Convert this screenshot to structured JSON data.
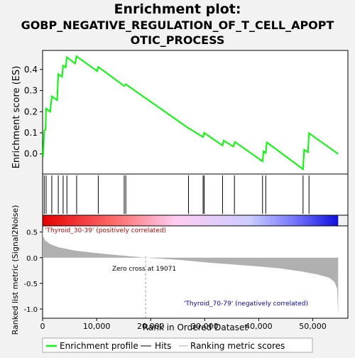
{
  "chart_data": {
    "type": "line",
    "title_lines": [
      "Enrichment plot:",
      "GOBP_NEGATIVE_REGULATION_OF_T_CELL_APOPT",
      "OTIC_PROCESS"
    ],
    "enrichment_panel": {
      "ylabel": "Enrichment score (ES)",
      "ylim": [
        -0.095,
        0.49
      ],
      "yticks": [
        0.0,
        0.1,
        0.2,
        0.3,
        0.4
      ],
      "ytick_labels": [
        "0.0",
        "0.1",
        "0.2",
        "0.3",
        "0.4"
      ],
      "line_color": "#00ff00",
      "profile": [
        [
          0,
          0.0
        ],
        [
          100,
          -0.005
        ],
        [
          300,
          0.11
        ],
        [
          550,
          0.115
        ],
        [
          650,
          0.215
        ],
        [
          1400,
          0.2
        ],
        [
          1700,
          0.272
        ],
        [
          2700,
          0.255
        ],
        [
          2900,
          0.378
        ],
        [
          3600,
          0.365
        ],
        [
          3800,
          0.418
        ],
        [
          4300,
          0.41
        ],
        [
          4500,
          0.458
        ],
        [
          6000,
          0.428
        ],
        [
          6300,
          0.462
        ],
        [
          10100,
          0.392
        ],
        [
          10300,
          0.412
        ],
        [
          15100,
          0.322
        ],
        [
          15400,
          0.33
        ],
        [
          27000,
          0.122
        ],
        [
          27300,
          0.118
        ],
        [
          29700,
          0.08
        ],
        [
          29900,
          0.1
        ],
        [
          33300,
          0.04
        ],
        [
          33500,
          0.063
        ],
        [
          35300,
          0.035
        ],
        [
          35600,
          0.057
        ],
        [
          40700,
          -0.035
        ],
        [
          40900,
          0.013
        ],
        [
          41300,
          0.005
        ],
        [
          41500,
          0.055
        ],
        [
          48200,
          -0.072
        ],
        [
          48400,
          0.02
        ],
        [
          49100,
          0.008
        ],
        [
          49300,
          0.098
        ],
        [
          54700,
          0.0
        ]
      ]
    },
    "hits": [
      300,
      650,
      1700,
      2900,
      3800,
      4500,
      6300,
      10300,
      15100,
      15400,
      27000,
      29700,
      29900,
      33300,
      35500,
      40700,
      41300,
      48200,
      49300
    ],
    "gradient_bar": {
      "stops": [
        {
          "offset": 0,
          "color": "#e60000"
        },
        {
          "offset": 0.25,
          "color": "#ff6f6f"
        },
        {
          "offset": 0.45,
          "color": "#ffccf2"
        },
        {
          "offset": 0.7,
          "color": "#ccccff"
        },
        {
          "offset": 0.85,
          "color": "#7777ff"
        },
        {
          "offset": 1,
          "color": "#1010dd"
        }
      ],
      "positive_label": "'Thyroid_30-39' (positively correlated)",
      "negative_label": "'Thyroid_70-79' (negatively correlated)"
    },
    "metric_panel": {
      "ylabel": "Ranked list metric (Signal2Noise)",
      "ylim": [
        -1.18,
        0.62
      ],
      "yticks": [
        0.5,
        0.0,
        -0.5,
        -1.0
      ],
      "ytick_labels": [
        "0.5",
        "0.0",
        "-0.5",
        "-1.0"
      ],
      "fill_color": "#b0b0b0",
      "zero_cross": 19071,
      "zero_cross_label": "Zero cross at 19071",
      "curve": [
        [
          0,
          0.55
        ],
        [
          100,
          0.42
        ],
        [
          500,
          0.33
        ],
        [
          1500,
          0.26
        ],
        [
          3000,
          0.2
        ],
        [
          6000,
          0.14
        ],
        [
          10000,
          0.09
        ],
        [
          14000,
          0.05
        ],
        [
          17000,
          0.02
        ],
        [
          19071,
          0.0
        ],
        [
          25000,
          -0.04
        ],
        [
          30000,
          -0.09
        ],
        [
          35000,
          -0.13
        ],
        [
          40000,
          -0.17
        ],
        [
          44000,
          -0.21
        ],
        [
          48000,
          -0.27
        ],
        [
          51000,
          -0.33
        ],
        [
          53000,
          -0.39
        ],
        [
          54000,
          -0.47
        ],
        [
          54500,
          -0.6
        ],
        [
          54700,
          -1.13
        ]
      ]
    },
    "xaxis": {
      "xlabel": "Rank in Ordered Dataset",
      "xlim": [
        0,
        56500
      ],
      "xmax_data": 54700,
      "xticks": [
        0,
        10000,
        20000,
        30000,
        40000,
        50000
      ],
      "xtick_labels": [
        "0",
        "10,000",
        "20,000",
        "30,000",
        "40,000",
        "50,000"
      ]
    },
    "legend": {
      "placement": "bottom",
      "items": [
        {
          "label": "Enrichment profile",
          "color": "#00ff00"
        },
        {
          "label": "Hits",
          "color": "#000000"
        },
        {
          "label": "Ranking metric scores",
          "color": "#b0b0b0"
        }
      ]
    }
  }
}
